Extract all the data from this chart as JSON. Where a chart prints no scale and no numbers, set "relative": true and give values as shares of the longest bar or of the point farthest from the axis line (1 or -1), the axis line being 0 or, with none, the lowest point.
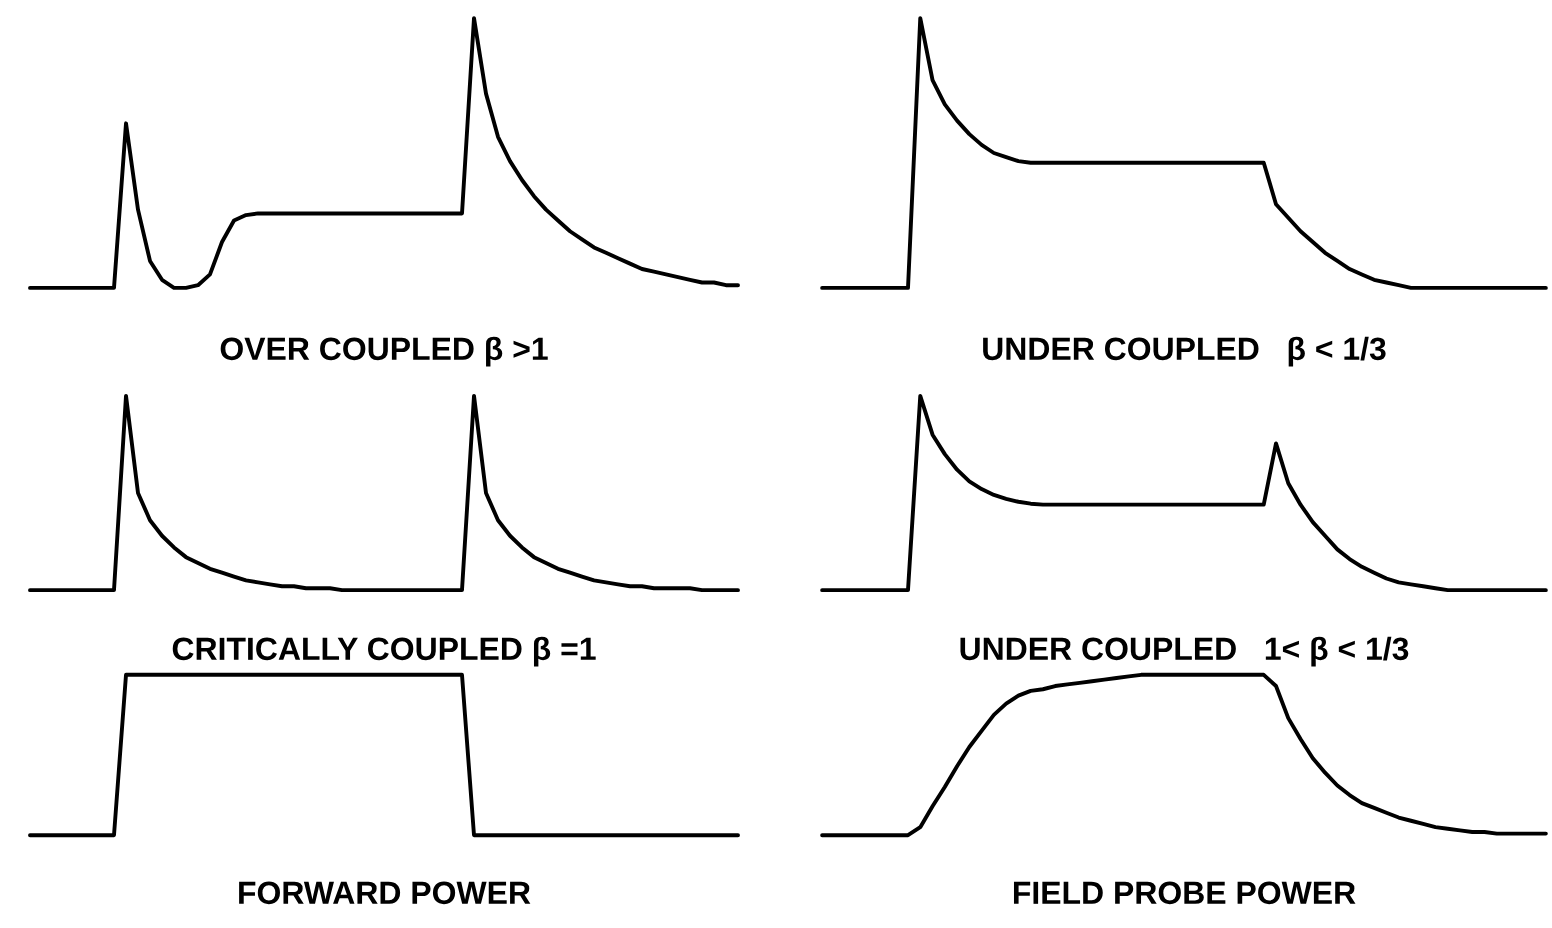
{
  "chart_data": [
    {
      "type": "line",
      "relative": true,
      "tick_labels": false,
      "title": "OVER COUPLED β >1",
      "categories": [
        null,
        null,
        null,
        null,
        null,
        null,
        null,
        null,
        null,
        null,
        null,
        null,
        null,
        null,
        null,
        null,
        null,
        null,
        null,
        null,
        null,
        null,
        null,
        null,
        null,
        null,
        null,
        null,
        null,
        null,
        null,
        null,
        null,
        null,
        null,
        null,
        null,
        null,
        null,
        null,
        null,
        null,
        null,
        null,
        null,
        null,
        null,
        null,
        null,
        null,
        null,
        null,
        null,
        null,
        null,
        null,
        null,
        null,
        null,
        null
      ],
      "series": [
        {
          "color": "#000000",
          "values": [
            0,
            0,
            0,
            0,
            0,
            0,
            0,
            0,
            0.61,
            0.29,
            0.1,
            0.03,
            0,
            0,
            0.01,
            0.05,
            0.17,
            0.25,
            0.27,
            0.276,
            0.276,
            0.276,
            0.276,
            0.276,
            0.276,
            0.276,
            0.276,
            0.276,
            0.276,
            0.276,
            0.276,
            0.276,
            0.276,
            0.276,
            0.276,
            0.276,
            0.276,
            1,
            0.72,
            0.56,
            0.47,
            0.4,
            0.34,
            0.29,
            0.25,
            0.21,
            0.18,
            0.15,
            0.13,
            0.11,
            0.09,
            0.07,
            0.06,
            0.05,
            0.04,
            0.03,
            0.02,
            0.02,
            0.01,
            0.01
          ]
        }
      ]
    },
    {
      "type": "line",
      "relative": true,
      "tick_labels": false,
      "title": "UNDER COUPLED   β < 1/3",
      "categories": [
        null,
        null,
        null,
        null,
        null,
        null,
        null,
        null,
        null,
        null,
        null,
        null,
        null,
        null,
        null,
        null,
        null,
        null,
        null,
        null,
        null,
        null,
        null,
        null,
        null,
        null,
        null,
        null,
        null,
        null,
        null,
        null,
        null,
        null,
        null,
        null,
        null,
        null,
        null,
        null,
        null,
        null,
        null,
        null,
        null,
        null,
        null,
        null,
        null,
        null,
        null,
        null,
        null,
        null,
        null,
        null,
        null,
        null,
        null,
        null
      ],
      "series": [
        {
          "color": "#000000",
          "values": [
            0,
            0,
            0,
            0,
            0,
            0,
            0,
            0,
            1,
            0.77,
            0.68,
            0.62,
            0.57,
            0.53,
            0.5,
            0.485,
            0.47,
            0.464,
            0.464,
            0.464,
            0.464,
            0.464,
            0.464,
            0.464,
            0.464,
            0.464,
            0.464,
            0.464,
            0.464,
            0.464,
            0.464,
            0.464,
            0.464,
            0.464,
            0.464,
            0.464,
            0.464,
            0.31,
            0.26,
            0.21,
            0.17,
            0.13,
            0.1,
            0.07,
            0.05,
            0.03,
            0.02,
            0.01,
            0,
            0,
            0,
            0,
            0,
            0,
            0,
            0,
            0,
            0,
            0,
            0
          ]
        }
      ]
    },
    {
      "type": "line",
      "relative": true,
      "tick_labels": false,
      "title": "CRITICALLY COUPLED β =1",
      "categories": [
        null,
        null,
        null,
        null,
        null,
        null,
        null,
        null,
        null,
        null,
        null,
        null,
        null,
        null,
        null,
        null,
        null,
        null,
        null,
        null,
        null,
        null,
        null,
        null,
        null,
        null,
        null,
        null,
        null,
        null,
        null,
        null,
        null,
        null,
        null,
        null,
        null,
        null,
        null,
        null,
        null,
        null,
        null,
        null,
        null,
        null,
        null,
        null,
        null,
        null,
        null,
        null,
        null,
        null,
        null,
        null,
        null,
        null,
        null,
        null
      ],
      "series": [
        {
          "color": "#000000",
          "values": [
            0,
            0,
            0,
            0,
            0,
            0,
            0,
            0,
            1,
            0.5,
            0.36,
            0.28,
            0.22,
            0.17,
            0.14,
            0.11,
            0.09,
            0.07,
            0.05,
            0.04,
            0.03,
            0.02,
            0.02,
            0.01,
            0.01,
            0.01,
            0,
            0,
            0,
            0,
            0,
            0,
            0,
            0,
            0,
            0,
            0,
            1,
            0.5,
            0.36,
            0.28,
            0.22,
            0.17,
            0.14,
            0.11,
            0.09,
            0.07,
            0.05,
            0.04,
            0.03,
            0.02,
            0.02,
            0.01,
            0.01,
            0.01,
            0.01,
            0,
            0,
            0,
            0
          ]
        }
      ]
    },
    {
      "type": "line",
      "relative": true,
      "tick_labels": false,
      "title": "UNDER COUPLED   1< β < 1/3",
      "categories": [
        null,
        null,
        null,
        null,
        null,
        null,
        null,
        null,
        null,
        null,
        null,
        null,
        null,
        null,
        null,
        null,
        null,
        null,
        null,
        null,
        null,
        null,
        null,
        null,
        null,
        null,
        null,
        null,
        null,
        null,
        null,
        null,
        null,
        null,
        null,
        null,
        null,
        null,
        null,
        null,
        null,
        null,
        null,
        null,
        null,
        null,
        null,
        null,
        null,
        null,
        null,
        null,
        null,
        null,
        null,
        null,
        null,
        null,
        null,
        null
      ],
      "series": [
        {
          "color": "#000000",
          "values": [
            0,
            0,
            0,
            0,
            0,
            0,
            0,
            0,
            1,
            0.8,
            0.7,
            0.62,
            0.56,
            0.52,
            0.49,
            0.47,
            0.455,
            0.445,
            0.44,
            0.44,
            0.44,
            0.44,
            0.44,
            0.44,
            0.44,
            0.44,
            0.44,
            0.44,
            0.44,
            0.44,
            0.44,
            0.44,
            0.44,
            0.44,
            0.44,
            0.44,
            0.44,
            0.755,
            0.55,
            0.44,
            0.35,
            0.28,
            0.21,
            0.16,
            0.12,
            0.09,
            0.06,
            0.04,
            0.03,
            0.02,
            0.01,
            0,
            0,
            0,
            0,
            0,
            0,
            0,
            0,
            0
          ]
        }
      ]
    },
    {
      "type": "line",
      "relative": true,
      "tick_labels": false,
      "title": "FORWARD POWER",
      "categories": [
        null,
        null,
        null,
        null,
        null,
        null,
        null,
        null,
        null,
        null,
        null,
        null,
        null,
        null,
        null,
        null,
        null,
        null,
        null,
        null,
        null,
        null,
        null,
        null,
        null,
        null,
        null,
        null,
        null,
        null,
        null,
        null,
        null,
        null,
        null,
        null,
        null,
        null,
        null,
        null,
        null,
        null,
        null,
        null,
        null,
        null,
        null,
        null,
        null,
        null,
        null,
        null,
        null,
        null,
        null,
        null,
        null,
        null,
        null,
        null
      ],
      "series": [
        {
          "color": "#000000",
          "values": [
            0,
            0,
            0,
            0,
            0,
            0,
            0,
            0,
            1,
            1,
            1,
            1,
            1,
            1,
            1,
            1,
            1,
            1,
            1,
            1,
            1,
            1,
            1,
            1,
            1,
            1,
            1,
            1,
            1,
            1,
            1,
            1,
            1,
            1,
            1,
            1,
            1,
            0,
            0,
            0,
            0,
            0,
            0,
            0,
            0,
            0,
            0,
            0,
            0,
            0,
            0,
            0,
            0,
            0,
            0,
            0,
            0,
            0,
            0,
            0
          ]
        }
      ]
    },
    {
      "type": "line",
      "relative": true,
      "tick_labels": false,
      "title": "FIELD PROBE POWER",
      "categories": [
        null,
        null,
        null,
        null,
        null,
        null,
        null,
        null,
        null,
        null,
        null,
        null,
        null,
        null,
        null,
        null,
        null,
        null,
        null,
        null,
        null,
        null,
        null,
        null,
        null,
        null,
        null,
        null,
        null,
        null,
        null,
        null,
        null,
        null,
        null,
        null,
        null,
        null,
        null,
        null,
        null,
        null,
        null,
        null,
        null,
        null,
        null,
        null,
        null,
        null,
        null,
        null,
        null,
        null,
        null,
        null,
        null,
        null,
        null,
        null
      ],
      "series": [
        {
          "color": "#000000",
          "values": [
            0,
            0,
            0,
            0,
            0,
            0,
            0,
            0,
            0.05,
            0.18,
            0.3,
            0.43,
            0.55,
            0.65,
            0.75,
            0.82,
            0.87,
            0.9,
            0.91,
            0.93,
            0.94,
            0.95,
            0.96,
            0.97,
            0.98,
            0.99,
            1,
            1,
            1,
            1,
            1,
            1,
            1,
            1,
            1,
            1,
            1,
            0.93,
            0.73,
            0.6,
            0.48,
            0.39,
            0.31,
            0.25,
            0.2,
            0.17,
            0.14,
            0.11,
            0.09,
            0.07,
            0.05,
            0.04,
            0.03,
            0.02,
            0.02,
            0.01,
            0.01,
            0.01,
            0.01,
            0.01
          ]
        }
      ]
    }
  ]
}
